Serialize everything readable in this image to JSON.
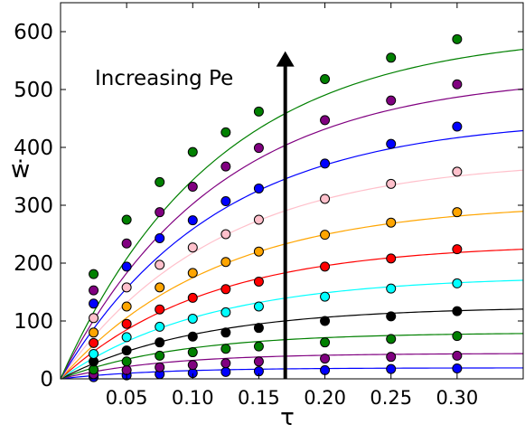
{
  "chart_data": {
    "type": "scatter",
    "title": "",
    "xlabel": "τ",
    "ylabel": "ẇ",
    "xlim": [
      0.0,
      0.35
    ],
    "ylim": [
      0,
      650
    ],
    "x_ticks": [
      0.05,
      0.1,
      0.15,
      0.2,
      0.25,
      0.3
    ],
    "x_tick_labels": [
      "0.05",
      "0.10",
      "0.15",
      "0.20",
      "0.25",
      "0.30"
    ],
    "y_ticks": [
      0,
      100,
      200,
      300,
      400,
      500,
      600
    ],
    "y_tick_labels": [
      "0",
      "100",
      "200",
      "300",
      "400",
      "500",
      "600"
    ],
    "grid": false,
    "legend": "none",
    "annotation": {
      "text": "Increasing Pe",
      "arrow_x": 0.17,
      "arrow_from_y": 0,
      "arrow_to_y": 560
    },
    "x": [
      0.025,
      0.05,
      0.075,
      0.1,
      0.125,
      0.15,
      0.2,
      0.25,
      0.3
    ],
    "series": [
      {
        "color": "#0000ff",
        "values": [
          3,
          6,
          8,
          10,
          12,
          13,
          15,
          17,
          18
        ],
        "fit": {
          "A": 19,
          "k": 14
        }
      },
      {
        "color": "#800080",
        "values": [
          8,
          15,
          20,
          24,
          27,
          30,
          35,
          38,
          40
        ],
        "fit": {
          "A": 44,
          "k": 13
        }
      },
      {
        "color": "#008000",
        "values": [
          16,
          30,
          40,
          46,
          52,
          56,
          63,
          69,
          74
        ],
        "fit": {
          "A": 80,
          "k": 11
        }
      },
      {
        "color": "#000000",
        "values": [
          30,
          49,
          63,
          73,
          80,
          88,
          100,
          108,
          117
        ],
        "fit": {
          "A": 125,
          "k": 9.5
        }
      },
      {
        "color": "#00ffff",
        "values": [
          43,
          72,
          90,
          104,
          115,
          125,
          142,
          156,
          165
        ],
        "fit": {
          "A": 178,
          "k": 9
        }
      },
      {
        "color": "#ff0000",
        "values": [
          62,
          95,
          120,
          140,
          155,
          168,
          194,
          208,
          224
        ],
        "fit": {
          "A": 234,
          "k": 9
        }
      },
      {
        "color": "#ffa500",
        "values": [
          80,
          125,
          158,
          183,
          202,
          220,
          249,
          270,
          288
        ],
        "fit": {
          "A": 305,
          "k": 8.5
        }
      },
      {
        "color": "#ffc0cb",
        "values": [
          105,
          158,
          197,
          227,
          250,
          275,
          311,
          337,
          358
        ],
        "fit": {
          "A": 380,
          "k": 8.5
        }
      },
      {
        "color": "#0000ff",
        "values": [
          130,
          194,
          243,
          274,
          307,
          329,
          372,
          406,
          436
        ],
        "fit": {
          "A": 452,
          "k": 8.5
        }
      },
      {
        "color": "#800080",
        "values": [
          153,
          234,
          288,
          332,
          367,
          399,
          447,
          481,
          509
        ],
        "fit": {
          "A": 528,
          "k": 8.5
        }
      },
      {
        "color": "#008000",
        "values": [
          181,
          275,
          340,
          392,
          426,
          462,
          518,
          555,
          587
        ],
        "fit": {
          "A": 600,
          "k": 8.5
        }
      }
    ]
  }
}
